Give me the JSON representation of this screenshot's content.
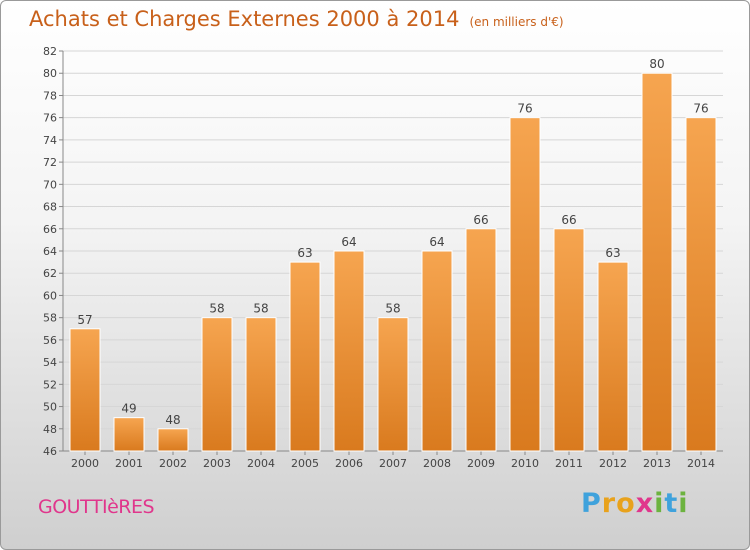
{
  "header": {
    "title": "Achats et Charges Externes 2000 à 2014",
    "subtitle": "(en milliers d'€)"
  },
  "footer": {
    "commune": "GOUTTIèRES",
    "logo": "Proxiti"
  },
  "chart_data": {
    "type": "bar",
    "categories": [
      "2000",
      "2001",
      "2002",
      "2003",
      "2004",
      "2005",
      "2006",
      "2007",
      "2008",
      "2009",
      "2010",
      "2011",
      "2012",
      "2013",
      "2014"
    ],
    "values": [
      57,
      49,
      48,
      58,
      58,
      63,
      64,
      58,
      64,
      66,
      76,
      66,
      63,
      80,
      76
    ],
    "title": "Achats et Charges Externes 2000 à 2014",
    "subtitle": "(en milliers d'€)",
    "ylim": [
      46,
      82
    ],
    "ytick_step": 2,
    "grid": true,
    "bar_color_top": "#f6a550",
    "bar_color_bottom": "#d97a1e",
    "data_labels": true
  }
}
